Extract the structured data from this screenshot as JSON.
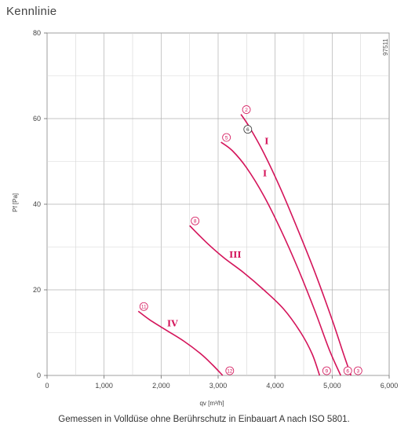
{
  "title": "Kennlinie",
  "caption": "Gemessen in Volldüse ohne Berührschutz in Einbauart A nach ISO 5801.",
  "chart_data": {
    "type": "line",
    "code": "97511",
    "xlabel": "qv [m³/h]",
    "ylabel": "Pf [Pa]",
    "xlim": [
      0,
      6000
    ],
    "ylim": [
      0,
      80
    ],
    "x_ticks": [
      0,
      1000,
      2000,
      3000,
      4000,
      5000,
      6000
    ],
    "x_tick_labels": [
      "0",
      "1,000",
      "2,000",
      "3,000",
      "4,000",
      "5,000",
      "6,000"
    ],
    "y_ticks": [
      0,
      20,
      40,
      60,
      80
    ],
    "y_tick_labels": [
      "0",
      "20",
      "40",
      "60",
      "80"
    ],
    "grid": true,
    "color": "#d4145a",
    "series": [
      {
        "name": "I",
        "label_at": [
          3850,
          54
        ],
        "x": [
          3400,
          3550,
          3800,
          4100,
          4400,
          4700,
          5000,
          5200,
          5330
        ],
        "y": [
          61,
          58,
          52,
          43.5,
          34,
          24,
          13,
          5,
          0
        ],
        "start_marker": "2",
        "end_marker": "3"
      },
      {
        "name": "I",
        "label_at": [
          3820,
          46.5
        ],
        "x": [
          3050,
          3250,
          3500,
          3800,
          4100,
          4400,
          4700,
          4950,
          5150
        ],
        "y": [
          54.5,
          52.5,
          48.5,
          42,
          34,
          25,
          15,
          6,
          0
        ],
        "start_marker": "5",
        "end_marker": "6"
      },
      {
        "name": "III",
        "label_at": [
          3300,
          27.5
        ],
        "x": [
          2500,
          2800,
          3100,
          3450,
          3800,
          4150,
          4450,
          4650,
          4780
        ],
        "y": [
          35,
          31,
          27.5,
          24,
          20,
          15.5,
          10,
          5,
          0
        ],
        "start_marker": "8",
        "end_marker": "9"
      },
      {
        "name": "IV",
        "label_at": [
          2200,
          11.5
        ],
        "x": [
          1600,
          1800,
          2100,
          2400,
          2700,
          2900,
          3080
        ],
        "y": [
          15,
          13,
          10.5,
          8,
          5,
          2.5,
          0
        ],
        "start_marker": "11",
        "end_marker": "12"
      }
    ],
    "operating_point": {
      "x": 3520,
      "y": 57.5,
      "label": "6"
    }
  }
}
